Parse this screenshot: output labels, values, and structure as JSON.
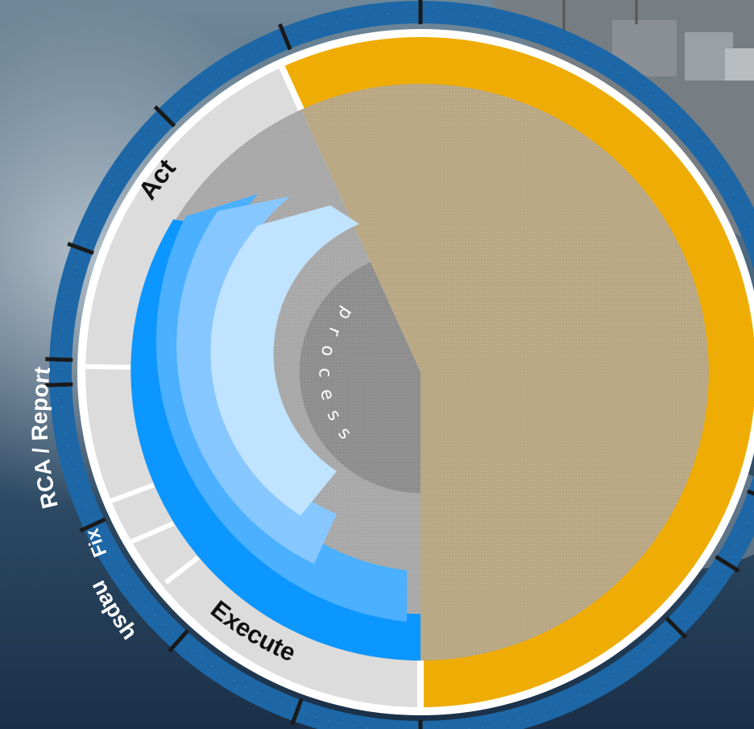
{
  "labels": {
    "act": "Act",
    "execute": "Execute",
    "rca_report": "RCA / Report",
    "snapshot": "Snapshot",
    "fix": "Fix",
    "process": "process"
  },
  "colors": {
    "background_sea": "#2a4a66",
    "outer_ring": "#1d67a6",
    "gold_band": "#efac05",
    "gray_band": "#dcdcdc",
    "inner_tan": "#b8a682",
    "inner_gray": "#a7a7a7",
    "center_gray": "#8c8c8c",
    "blue_1": "#0c96ff",
    "blue_2": "#4ab0ff",
    "blue_3": "#87c7ff",
    "blue_4": "#c0e3ff"
  },
  "icons": {
    "background": "ocean-warship-photo",
    "overlay": "mesh-pattern"
  }
}
